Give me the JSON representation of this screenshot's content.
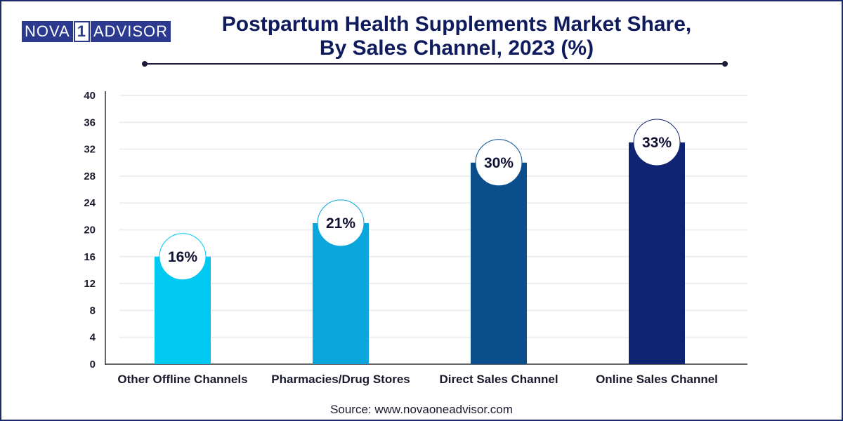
{
  "brand": {
    "left": "NOVA",
    "middle": "1",
    "right": "ADVISOR"
  },
  "title_line1": "Postpartum Health Supplements Market Share,",
  "title_line2": "By Sales Channel, 2023 (%)",
  "source": "Source: www.novaoneadvisor.com",
  "colors": {
    "frame": "#1f2a6b",
    "title": "#0f1b5c"
  },
  "chart_data": {
    "type": "bar",
    "title": "Postpartum Health Supplements Market Share, By Sales Channel, 2023 (%)",
    "xlabel": "",
    "ylabel": "",
    "categories": [
      "Other Offline Channels",
      "Pharmacies/Drug Stores",
      "Direct Sales Channel",
      "Online Sales Channel"
    ],
    "values": [
      16,
      21,
      30,
      33
    ],
    "data_labels": [
      "16%",
      "21%",
      "30%",
      "33%"
    ],
    "bar_colors": [
      "#00c8f0",
      "#0aa6dc",
      "#0a4f8c",
      "#0f2472"
    ],
    "ylim": [
      0,
      40
    ],
    "yticks": [
      0,
      4,
      8,
      12,
      16,
      20,
      24,
      28,
      32,
      36,
      40
    ],
    "grid": true,
    "legend": "none"
  }
}
